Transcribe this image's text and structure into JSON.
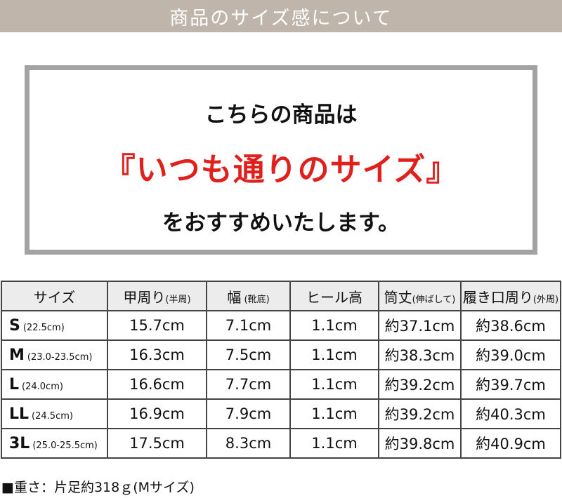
{
  "banner": {
    "title": "商品のサイズ感について"
  },
  "message": {
    "line1": "こちらの商品は",
    "line2": "『いつも通りのサイズ』",
    "line3": "をおすすめいたします。",
    "accent_color": "#e0201c"
  },
  "table": {
    "headers": [
      {
        "main": "サイズ",
        "sub": ""
      },
      {
        "main": "甲周り",
        "sub": "(半周)"
      },
      {
        "main": "幅",
        "sub": " (靴底)"
      },
      {
        "main": "ヒール高",
        "sub": ""
      },
      {
        "main": "筒丈",
        "sub": "(伸ばして)"
      },
      {
        "main": "履き口周り",
        "sub": "(外周)"
      }
    ],
    "rows": [
      {
        "size": "S",
        "range": "(22.5cm)",
        "cells": [
          "15.7cm",
          "7.1cm",
          "1.1cm",
          "約37.1cm",
          "約38.6cm"
        ]
      },
      {
        "size": "M",
        "range": "(23.0-23.5cm)",
        "cells": [
          "16.3cm",
          "7.5cm",
          "1.1cm",
          "約38.3cm",
          "約39.0cm"
        ]
      },
      {
        "size": "L",
        "range": "(24.0cm)",
        "cells": [
          "16.6cm",
          "7.7cm",
          "1.1cm",
          "約39.2cm",
          "約39.7cm"
        ]
      },
      {
        "size": "LL",
        "range": "(24.5cm)",
        "cells": [
          "16.9cm",
          "7.9cm",
          "1.1cm",
          "約39.2cm",
          "約40.3cm"
        ]
      },
      {
        "size": "3L",
        "range": "(25.0-25.5cm)",
        "cells": [
          "17.5cm",
          "8.3cm",
          "1.1cm",
          "約39.8cm",
          "約40.9cm"
        ]
      }
    ]
  },
  "note": "■重さ：片足約318ｇ(Mサイズ)"
}
